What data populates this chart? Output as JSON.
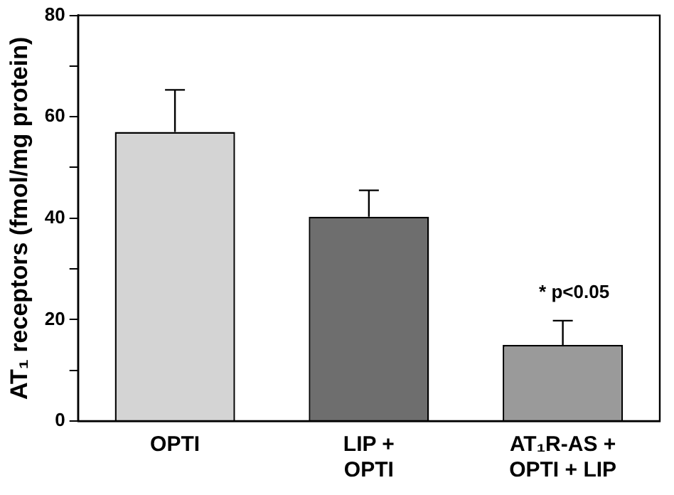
{
  "chart_data": {
    "type": "bar",
    "ylabel": "AT₁ receptors (fmol/mg protein)",
    "categories": [
      "OPTI",
      "LIP +\nOPTI",
      "AT₁R-AS +\nOPTI + LIP"
    ],
    "values": [
      57,
      40.3,
      15
    ],
    "colors": [
      "#d4d4d4",
      "#6e6e6e",
      "#9a9a9a"
    ],
    "errors": [
      [
        57,
        65.3
      ],
      [
        40.3,
        45.5
      ],
      [
        15,
        19.8
      ]
    ],
    "ylim": [
      0,
      80
    ],
    "yticks": [
      0,
      {
        "value": 10,
        "label": null
      },
      20,
      {
        "value": 30,
        "label": null
      },
      40,
      {
        "value": 50,
        "label": null
      },
      60,
      {
        "value": 70,
        "label": null
      },
      80
    ],
    "annotations": [
      "* p<0.05"
    ],
    "grid": false,
    "legend": false
  }
}
